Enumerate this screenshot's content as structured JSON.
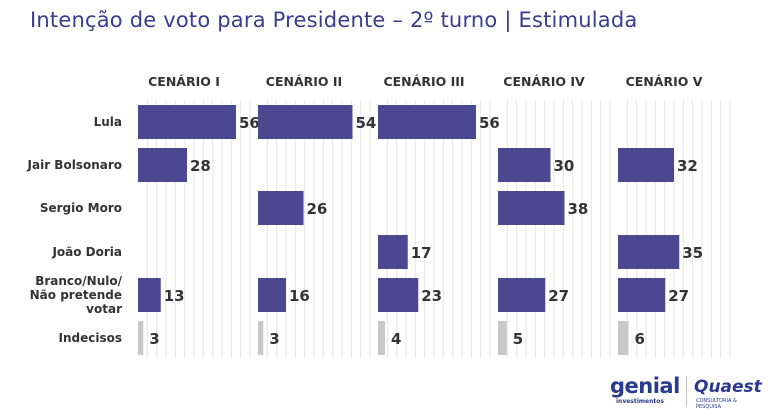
{
  "title": "Intenção de voto para Presidente – 2º turno | Estimulada",
  "logos": {
    "genial": "genial",
    "genial_sub": "investimentos",
    "quaest": "Quaest",
    "quaest_sub": "CONSULTORIA & PESQUISA"
  },
  "colors": {
    "bar": "#4b4891",
    "undecided_bar": "#c8c8c8",
    "title": "#3b3b8f",
    "label": "#333333",
    "grid": "#e6e6e6"
  },
  "chart_data": {
    "type": "bar",
    "orientation": "horizontal",
    "title": "Intenção de voto para Presidente – 2º turno | Estimulada",
    "categories": [
      "Lula",
      "Jair Bolsonaro",
      "Sergio Moro",
      "João Doria",
      "Branco/Nulo/\nNão pretende\nvotar",
      "Indecisos"
    ],
    "scenarios": [
      {
        "name": "CENÁRIO I",
        "values": [
          56,
          28,
          null,
          null,
          13,
          3
        ]
      },
      {
        "name": "CENÁRIO II",
        "values": [
          54,
          null,
          26,
          null,
          16,
          3
        ]
      },
      {
        "name": "CENÁRIO III",
        "values": [
          56,
          null,
          null,
          17,
          23,
          4
        ]
      },
      {
        "name": "CENÁRIO IV",
        "values": [
          null,
          30,
          38,
          null,
          27,
          5
        ]
      },
      {
        "name": "CENÁRIO V",
        "values": [
          null,
          32,
          null,
          35,
          27,
          6
        ]
      }
    ],
    "xlim": [
      0,
      60
    ],
    "grid": true
  }
}
